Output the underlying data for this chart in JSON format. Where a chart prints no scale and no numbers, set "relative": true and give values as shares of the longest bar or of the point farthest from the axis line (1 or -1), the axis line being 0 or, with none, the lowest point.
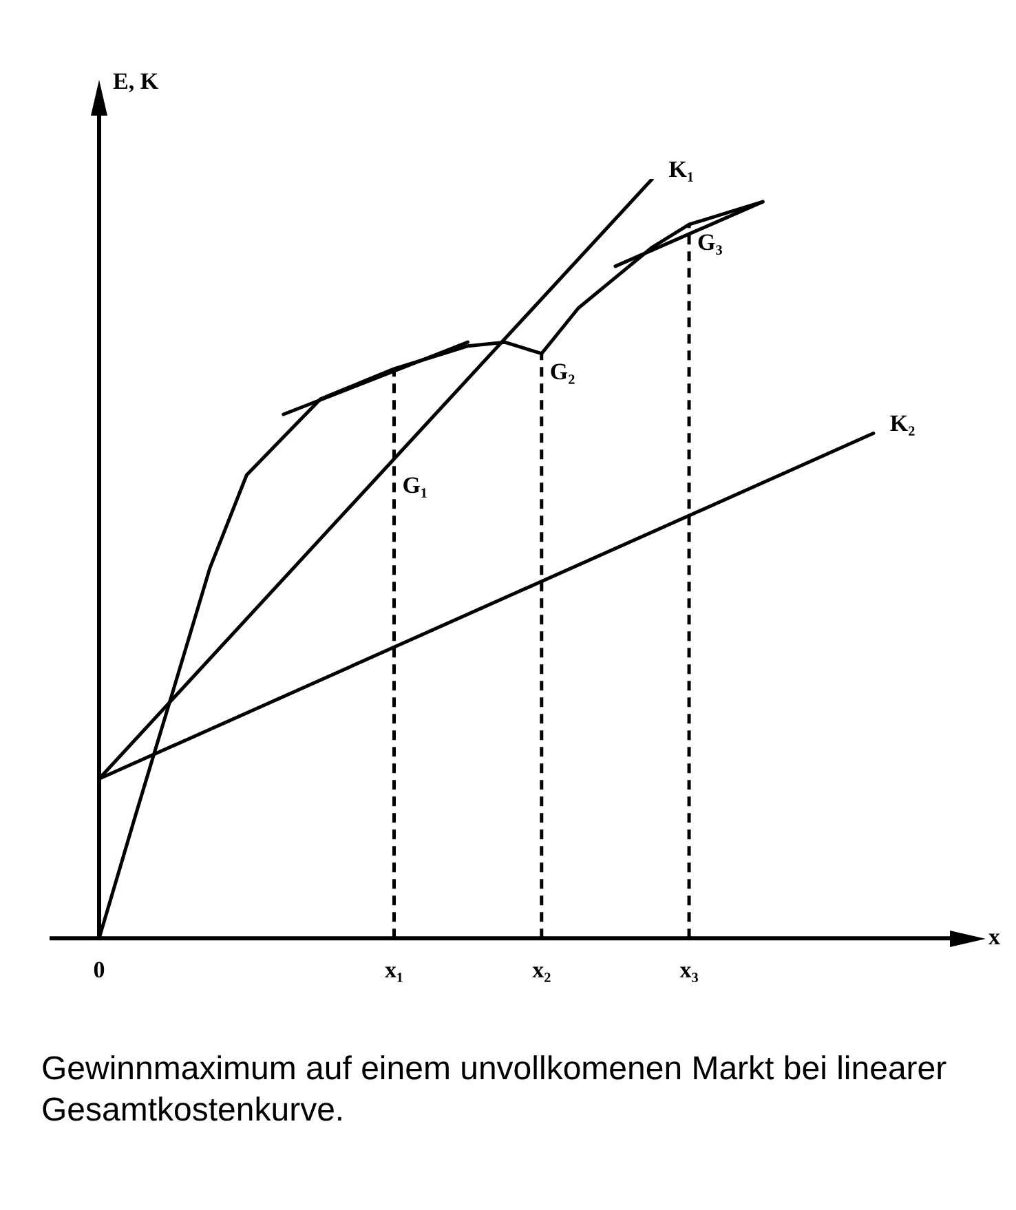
{
  "chart_data": {
    "type": "line",
    "relative": true,
    "xlabel": "x",
    "ylabel": "E, K",
    "marker": "none",
    "line_style": "solid",
    "categories": [
      "0",
      null,
      null,
      null,
      null,
      null,
      null,
      null,
      "x₁",
      null,
      null,
      null,
      "x₂",
      null,
      null,
      null,
      "x₃",
      null,
      null,
      null,
      null,
      null,
      null,
      null
    ],
    "series": [
      {
        "color": "#000000",
        "values": [
          0,
          0.164,
          0.325,
          0.487,
          0.61,
          0.66,
          0.71,
          0.73,
          0.75,
          0.765,
          0.78,
          0.785,
          0.77,
          0.83,
          0.87,
          0.91,
          0.94,
          0.955,
          0.97,
          null,
          null,
          null,
          null,
          null
        ]
      },
      {
        "name": "K₁",
        "color": "#000000",
        "values": [
          0.21,
          null,
          null,
          null,
          null,
          null,
          null,
          null,
          null,
          null,
          null,
          null,
          null,
          null,
          null,
          1,
          null,
          null,
          null,
          null,
          null,
          null,
          null,
          null
        ]
      },
      {
        "name": "K₂",
        "color": "#000000",
        "values": [
          0.21,
          null,
          null,
          null,
          null,
          null,
          null,
          null,
          null,
          null,
          null,
          null,
          null,
          null,
          null,
          null,
          null,
          null,
          null,
          null,
          null,
          0.665,
          null,
          null
        ]
      },
      {
        "color": "#000000",
        "values": [
          null,
          null,
          null,
          null,
          null,
          0.69,
          null,
          null,
          null,
          null,
          0.785,
          null,
          null,
          null,
          null,
          null,
          null,
          null,
          null,
          null,
          null,
          null,
          null,
          null
        ]
      },
      {
        "color": "#000000",
        "values": [
          null,
          null,
          null,
          null,
          null,
          null,
          null,
          null,
          null,
          null,
          null,
          null,
          null,
          null,
          0.885,
          null,
          null,
          null,
          0.97,
          null,
          null,
          null,
          null,
          null
        ]
      }
    ],
    "ref_lines": [
      {
        "axis": "x",
        "value": "x₁",
        "line_style": "dashed"
      },
      {
        "axis": "x",
        "value": "x₂",
        "line_style": "dashed"
      },
      {
        "axis": "x",
        "value": "x₃",
        "line_style": "dashed"
      }
    ],
    "annotations": [
      {
        "text": "G₁",
        "x": "x₁",
        "y": 0.62
      },
      {
        "text": "G₂",
        "x": "x₂",
        "y": 0.77
      },
      {
        "text": "G₃",
        "x": "x₃",
        "y": 0.94
      },
      "Gewinnmaximum auf einem unvollkomenen Markt bei linearer Gesamtkostenkurve."
    ]
  }
}
